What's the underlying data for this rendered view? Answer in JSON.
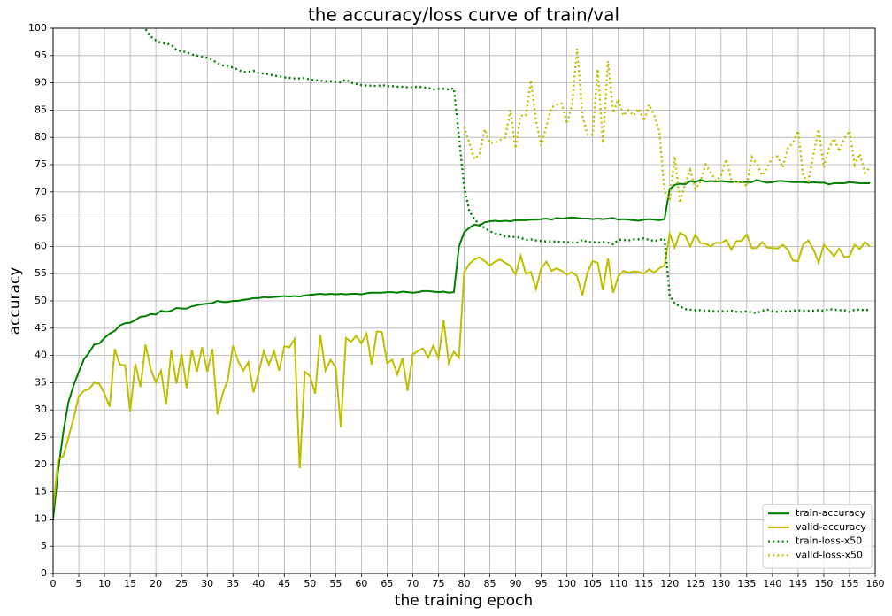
{
  "chart_data": {
    "type": "line",
    "title": "the accuracy/loss curve of train/val",
    "x_label": "the training epoch",
    "y_label": "accuracy",
    "x": [
      0,
      1,
      2,
      3,
      4,
      5,
      6,
      7,
      8,
      9,
      10,
      11,
      12,
      13,
      14,
      15,
      16,
      17,
      18,
      19,
      20,
      21,
      22,
      23,
      24,
      25,
      26,
      27,
      28,
      29,
      30,
      31,
      32,
      33,
      34,
      35,
      36,
      37,
      38,
      39,
      40,
      41,
      42,
      43,
      44,
      45,
      46,
      47,
      48,
      49,
      50,
      51,
      52,
      53,
      54,
      55,
      56,
      57,
      58,
      59,
      60,
      61,
      62,
      63,
      64,
      65,
      66,
      67,
      68,
      69,
      70,
      71,
      72,
      73,
      74,
      75,
      76,
      77,
      78,
      79,
      80,
      81,
      82,
      83,
      84,
      85,
      86,
      87,
      88,
      89,
      90,
      91,
      92,
      93,
      94,
      95,
      96,
      97,
      98,
      99,
      100,
      101,
      102,
      103,
      104,
      105,
      106,
      107,
      108,
      109,
      110,
      111,
      112,
      113,
      114,
      115,
      116,
      117,
      118,
      119,
      120,
      121,
      122,
      123,
      124,
      125,
      126,
      127,
      128,
      129,
      130,
      131,
      132,
      133,
      134,
      135,
      136,
      137,
      138,
      139,
      140,
      141,
      142,
      143,
      144,
      145,
      146,
      147,
      148,
      149,
      150,
      151,
      152,
      153,
      154,
      155,
      156,
      157,
      158,
      159
    ],
    "series": [
      {
        "name": "train-accuracy",
        "color": "#008000",
        "linestyle": "solid",
        "values": [
          10,
          19,
          26,
          31.5,
          34.5,
          37,
          39.3,
          40.5,
          42,
          42.2,
          43.2,
          44,
          44.5,
          45.5,
          45.9,
          46,
          46.5,
          47.1,
          47.2,
          47.6,
          47.5,
          48.2,
          48,
          48.2,
          48.7,
          48.6,
          48.6,
          49,
          49.2,
          49.4,
          49.5,
          49.6,
          50,
          49.8,
          49.8,
          50,
          50,
          50.2,
          50.3,
          50.5,
          50.5,
          50.7,
          50.6,
          50.7,
          50.8,
          50.9,
          50.8,
          50.9,
          50.8,
          51,
          51.1,
          51.2,
          51.3,
          51.2,
          51.3,
          51.2,
          51.3,
          51.2,
          51.3,
          51.3,
          51.2,
          51.4,
          51.5,
          51.5,
          51.5,
          51.6,
          51.6,
          51.5,
          51.7,
          51.6,
          51.5,
          51.6,
          51.8,
          51.8,
          51.7,
          51.6,
          51.7,
          51.5,
          51.6,
          60,
          62.6,
          63.4,
          64,
          63.8,
          64.4,
          64.6,
          64.7,
          64.6,
          64.7,
          64.6,
          64.8,
          64.8,
          64.8,
          64.9,
          64.9,
          65,
          65.1,
          64.9,
          65.2,
          65.1,
          65.2,
          65.3,
          65.2,
          65.1,
          65.1,
          65,
          65.1,
          65,
          65.1,
          65.2,
          64.9,
          65,
          64.9,
          64.8,
          64.7,
          64.9,
          65,
          64.9,
          64.8,
          65,
          70.5,
          71.3,
          71.5,
          71.4,
          72,
          71.8,
          72.2,
          71.9,
          72,
          71.9,
          72,
          71.9,
          71.8,
          71.9,
          71.8,
          71.8,
          71.8,
          72.2,
          71.9,
          71.7,
          71.8,
          72,
          72,
          71.9,
          71.8,
          71.8,
          71.8,
          71.7,
          71.8,
          71.7,
          71.7,
          71.4,
          71.6,
          71.6,
          71.6,
          71.8,
          71.7,
          71.6,
          71.6,
          71.6
        ]
      },
      {
        "name": "valid-accuracy",
        "color": "#bfbf00",
        "linestyle": "solid",
        "values": [
          12,
          21,
          21.5,
          25,
          28.5,
          32.5,
          33.5,
          33.8,
          35,
          34.8,
          33,
          30.6,
          41.2,
          38.3,
          38.2,
          29.7,
          38.5,
          34.2,
          42,
          37.5,
          35,
          37.2,
          31,
          41,
          34.8,
          40.3,
          34,
          41,
          37,
          41.5,
          37,
          41.2,
          29.2,
          33,
          35.5,
          41.8,
          39,
          37.2,
          38.8,
          33.2,
          36.8,
          40.8,
          38.3,
          40.8,
          37.2,
          41.7,
          41.5,
          43,
          19.3,
          37,
          36.2,
          33,
          43.8,
          37.2,
          39.2,
          37.8,
          26.8,
          43.2,
          42.5,
          43.6,
          42.2,
          44,
          38.3,
          44.4,
          44.3,
          38.6,
          39.2,
          36.5,
          39.5,
          33.5,
          40.2,
          40.8,
          41.3,
          39.6,
          41.8,
          39.5,
          46.5,
          38.6,
          40.7,
          39.6,
          55.2,
          56.8,
          57.6,
          58,
          57.3,
          56.5,
          57.2,
          57.6,
          57,
          56.4,
          54.8,
          58.3,
          55,
          55.3,
          52.2,
          56,
          57.2,
          55.5,
          56,
          55.5,
          54.8,
          55.3,
          54.5,
          51,
          55.2,
          57.3,
          57,
          52,
          57.8,
          51.5,
          54.5,
          55.5,
          55.2,
          55.4,
          55.3,
          55,
          55.8,
          55.2,
          56,
          56.5,
          62.3,
          59.8,
          62.5,
          62,
          60,
          62.2,
          60.6,
          60.5,
          60,
          60.7,
          60.6,
          61.2,
          59.4,
          61,
          61,
          62.2,
          59.7,
          59.7,
          60.8,
          59.8,
          59.7,
          59.6,
          60.3,
          59.4,
          57.4,
          57.3,
          60.4,
          61.1,
          59.4,
          57,
          60.3,
          59.3,
          58.2,
          59.6,
          58,
          58.2,
          60.3,
          59.5,
          60.8,
          60
        ]
      },
      {
        "name": "train-loss-x50",
        "color": "#008000",
        "linestyle": "dotted",
        "values": [
          null,
          null,
          null,
          null,
          null,
          null,
          null,
          null,
          null,
          null,
          null,
          null,
          null,
          null,
          null,
          null,
          null,
          null,
          99.8,
          98.5,
          97.8,
          97.3,
          97.2,
          97,
          96,
          95.8,
          95.6,
          95.2,
          95,
          94.8,
          94.6,
          94.2,
          93.6,
          93.2,
          93.1,
          92.8,
          92.4,
          92,
          92,
          92.2,
          91.8,
          91.7,
          91.6,
          91.3,
          91.2,
          91,
          90.9,
          90.8,
          90.8,
          90.9,
          90.6,
          90.5,
          90.4,
          90.3,
          90.3,
          90.2,
          90.1,
          90.6,
          90,
          89.8,
          89.6,
          89.5,
          89.5,
          89.4,
          89.6,
          89.4,
          89.4,
          89.3,
          89.3,
          89.2,
          89.2,
          89.3,
          89.2,
          89.1,
          88.8,
          88.9,
          88.9,
          88.8,
          89,
          80,
          71,
          66.5,
          65,
          64,
          63.4,
          62.8,
          62.4,
          62.2,
          61.8,
          61.8,
          61.7,
          61.6,
          61.2,
          61.3,
          61.1,
          61,
          60.9,
          60.9,
          60.9,
          60.8,
          60.8,
          60.7,
          60.7,
          61.2,
          60.8,
          60.8,
          60.7,
          60.8,
          60.7,
          60.4,
          61.2,
          61.2,
          61.1,
          61.3,
          61.3,
          61.5,
          61.2,
          61,
          61.2,
          61.4,
          51,
          49.5,
          49,
          48.5,
          48.4,
          48.3,
          48.3,
          48.2,
          48.2,
          48.1,
          48.1,
          48.1,
          48.2,
          48,
          48,
          48.1,
          47.9,
          47.8,
          48.2,
          48.4,
          48.1,
          48,
          48.2,
          48,
          48.2,
          48.3,
          48.2,
          48.2,
          48.2,
          48.3,
          48.2,
          48.5,
          48.4,
          48.3,
          48.3,
          48,
          48.4,
          48.4,
          48.3,
          48.4
        ]
      },
      {
        "name": "valid-loss-x50",
        "color": "#bfbf00",
        "linestyle": "dotted",
        "values": [
          null,
          null,
          null,
          null,
          null,
          null,
          null,
          null,
          null,
          null,
          null,
          null,
          null,
          null,
          null,
          null,
          null,
          null,
          null,
          null,
          null,
          null,
          null,
          null,
          null,
          null,
          null,
          null,
          null,
          null,
          null,
          null,
          null,
          null,
          null,
          null,
          null,
          null,
          null,
          null,
          null,
          null,
          null,
          null,
          null,
          null,
          null,
          null,
          null,
          null,
          null,
          null,
          null,
          null,
          null,
          null,
          null,
          null,
          null,
          null,
          null,
          null,
          null,
          null,
          null,
          null,
          null,
          null,
          null,
          null,
          null,
          null,
          null,
          null,
          null,
          null,
          null,
          null,
          null,
          null,
          82,
          79,
          76,
          77,
          81.5,
          79,
          79,
          79.5,
          80,
          85,
          78,
          84,
          84,
          90.5,
          83,
          78.5,
          82,
          85.5,
          86,
          86.2,
          82.5,
          86,
          96.3,
          84,
          80.5,
          80.5,
          92.5,
          79,
          94,
          84.5,
          87,
          84,
          85,
          84,
          85.3,
          83,
          86,
          84,
          81,
          70,
          68.5,
          76.5,
          68,
          71.5,
          74,
          70.5,
          72,
          75,
          73.5,
          72,
          73,
          76,
          72.2,
          71.6,
          72,
          71,
          76.4,
          75,
          73,
          74.5,
          76.3,
          76.5,
          74.5,
          78,
          79,
          81.2,
          72.8,
          72,
          77,
          81.5,
          74.5,
          78,
          79.8,
          77.4,
          79.8,
          81.2,
          75,
          77,
          73.5,
          74.5
        ]
      }
    ],
    "xlim": [
      0,
      160
    ],
    "ylim": [
      0,
      100
    ],
    "xticks": [
      0,
      5,
      10,
      15,
      20,
      25,
      30,
      35,
      40,
      45,
      50,
      55,
      60,
      65,
      70,
      75,
      80,
      85,
      90,
      95,
      100,
      105,
      110,
      115,
      120,
      125,
      130,
      135,
      140,
      145,
      150,
      155,
      160
    ],
    "yticks": [
      0,
      5,
      10,
      15,
      20,
      25,
      30,
      35,
      40,
      45,
      50,
      55,
      60,
      65,
      70,
      75,
      80,
      85,
      90,
      95,
      100
    ],
    "grid": true,
    "legend": "lower right"
  }
}
